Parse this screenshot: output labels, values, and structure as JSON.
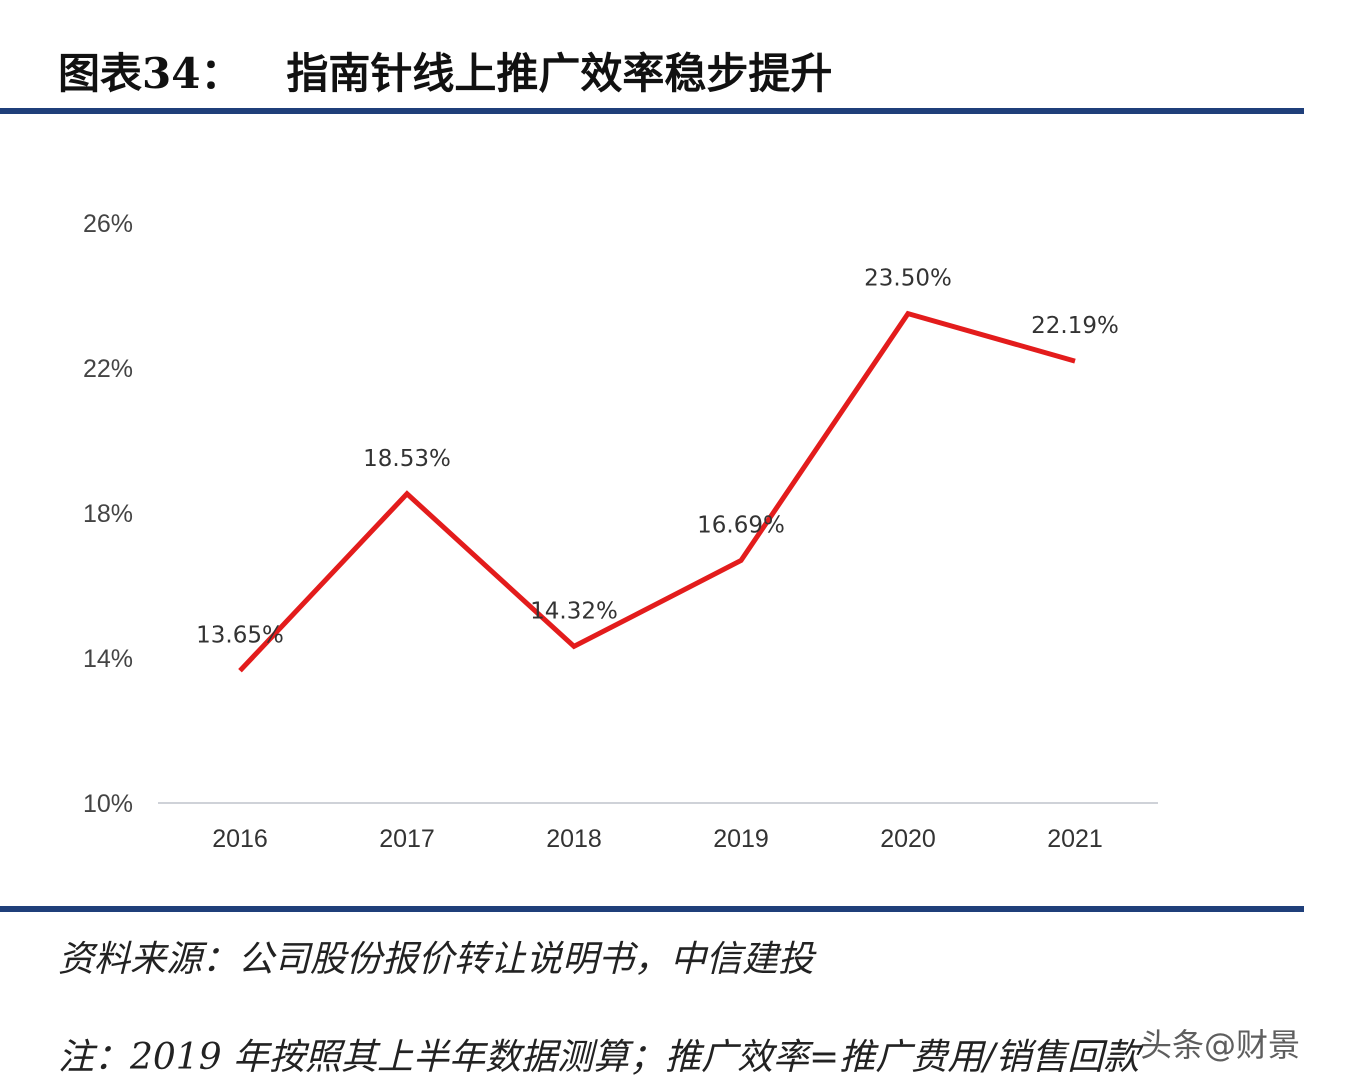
{
  "title": "图表34：   指南针线上推广效率稳步提升",
  "source": "资料来源：公司股份报价转让说明书，中信建投",
  "note": "注：2019 年按照其上半年数据测算；推广效率=推广费用/销售回款",
  "watermark": "头条@财景",
  "colors": {
    "line": "#e31c1c",
    "rule": "#1f3f7a",
    "axis": "#bfc4cc"
  },
  "chart_data": {
    "type": "line",
    "categories": [
      "2016",
      "2017",
      "2018",
      "2019",
      "2020",
      "2021"
    ],
    "values": [
      13.65,
      18.53,
      14.32,
      16.69,
      23.5,
      22.19
    ],
    "data_labels": [
      "13.65%",
      "18.53%",
      "14.32%",
      "16.69%",
      "23.50%",
      "22.19%"
    ],
    "ylim": [
      10,
      26
    ],
    "yticks": [
      "10%",
      "14%",
      "18%",
      "22%",
      "26%"
    ],
    "ytick_values": [
      10,
      14,
      18,
      22,
      26
    ],
    "grid": false,
    "legend": "none"
  }
}
